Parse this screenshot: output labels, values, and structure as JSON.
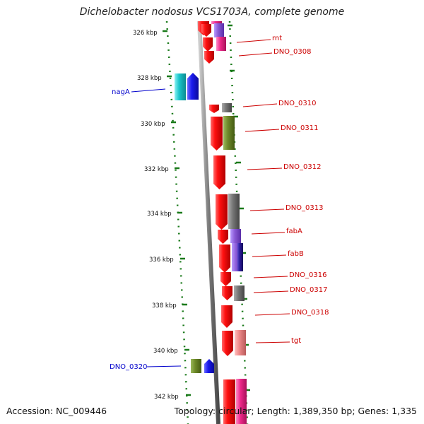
{
  "title": "Dichelobacter nodosus VCS1703A, complete genome",
  "footer": {
    "accession": "Accession: NC_009446",
    "stats": "Topology: circular; Length: 1,389,350 bp; Genes: 1,335"
  },
  "colors": {
    "red": "#ee1111",
    "pink": "#ee2a8a",
    "purple": "#8a5ad6",
    "blue": "#1a1aee",
    "navy": "#2a1a9a",
    "cyan": "#19c6cc",
    "olive": "#6e8a2a",
    "gray": "#777777",
    "salmon": "#ef8a8a",
    "ruler": "#1a7a1a",
    "labelRed": "#cc0000",
    "labelBlue": "#0000cc"
  },
  "ruler_labels": [
    "326 kbp",
    "328 kbp",
    "330 kbp",
    "332 kbp",
    "334 kbp",
    "336 kbp",
    "338 kbp",
    "340 kbp",
    "342 kbp"
  ],
  "gene_labels": {
    "right": [
      "rnt",
      "DNO_0308",
      "DNO_0310",
      "DNO_0311",
      "DNO_0312",
      "DNO_0313",
      "fabA",
      "fabB",
      "DNO_0316",
      "DNO_0317",
      "DNO_0318",
      "tgt"
    ],
    "left": [
      "nagA",
      "DNO_0320"
    ]
  }
}
